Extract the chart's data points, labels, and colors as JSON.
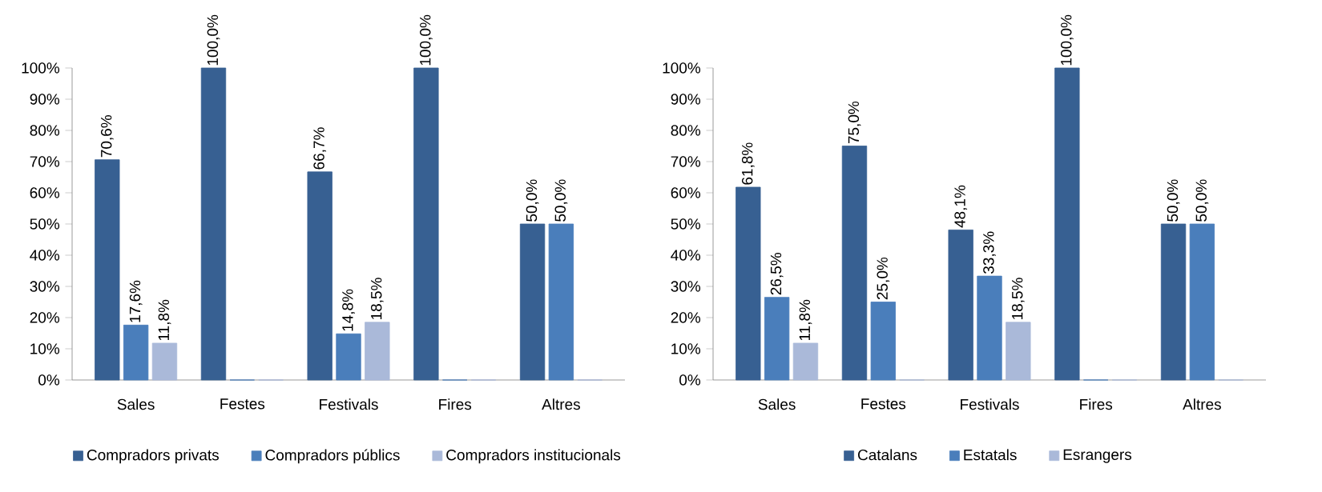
{
  "chart_data": [
    {
      "type": "bar",
      "categories": [
        "Sales",
        "Festes",
        "Festivals",
        "Fires",
        "Altres"
      ],
      "ylim": [
        0,
        100
      ],
      "yticks": [
        {
          "value": 0,
          "label": "0%"
        },
        {
          "value": 10,
          "label": "10%"
        },
        {
          "value": 20,
          "label": "20%"
        },
        {
          "value": 30,
          "label": "30%"
        },
        {
          "value": 40,
          "label": "40%"
        },
        {
          "value": 50,
          "label": "50%"
        },
        {
          "value": 60,
          "label": "60%"
        },
        {
          "value": 70,
          "label": "70%"
        },
        {
          "value": 80,
          "label": "80%"
        },
        {
          "value": 90,
          "label": "90%"
        },
        {
          "value": 100,
          "label": "100%"
        }
      ],
      "legend": "bottom",
      "series": [
        {
          "name": "Compradors privats",
          "color": "#376092",
          "values": [
            70.6,
            100,
            66.7,
            100,
            50
          ],
          "value_labels": [
            "70,6%",
            "100,0%",
            "66,7%",
            "100,0%",
            "50,0%"
          ]
        },
        {
          "name": "Compradors públics",
          "color": "#4a7ebb",
          "values": [
            17.6,
            0,
            14.8,
            0,
            50
          ],
          "value_labels": [
            "17,6%",
            null,
            "14,8%",
            null,
            "50,0%"
          ]
        },
        {
          "name": "Compradors institucionals",
          "color": "#aab9d9",
          "values": [
            11.8,
            0,
            18.5,
            0,
            0
          ],
          "value_labels": [
            "11,8%",
            null,
            "18,5%",
            null,
            null
          ]
        }
      ]
    },
    {
      "type": "bar",
      "categories": [
        "Sales",
        "Festes",
        "Festivals",
        "Fires",
        "Altres"
      ],
      "ylim": [
        0,
        100
      ],
      "yticks": [
        {
          "value": 0,
          "label": "0%"
        },
        {
          "value": 10,
          "label": "10%"
        },
        {
          "value": 20,
          "label": "20%"
        },
        {
          "value": 30,
          "label": "30%"
        },
        {
          "value": 40,
          "label": "40%"
        },
        {
          "value": 50,
          "label": "50%"
        },
        {
          "value": 60,
          "label": "60%"
        },
        {
          "value": 70,
          "label": "70%"
        },
        {
          "value": 80,
          "label": "80%"
        },
        {
          "value": 90,
          "label": "90%"
        },
        {
          "value": 100,
          "label": "100%"
        }
      ],
      "legend": "bottom",
      "series": [
        {
          "name": "Catalans",
          "color": "#376092",
          "values": [
            61.8,
            75,
            48.1,
            100,
            50
          ],
          "value_labels": [
            "61,8%",
            "75,0%",
            "48,1%",
            "100,0%",
            "50,0%"
          ]
        },
        {
          "name": "Estatals",
          "color": "#4a7ebb",
          "values": [
            26.5,
            25,
            33.3,
            0,
            50
          ],
          "value_labels": [
            "26,5%",
            "25,0%",
            "33,3%",
            null,
            "50,0%"
          ]
        },
        {
          "name": "Esrangers",
          "color": "#aab9d9",
          "values": [
            11.8,
            0,
            18.5,
            0,
            0
          ],
          "value_labels": [
            "11,8%",
            null,
            "18,5%",
            null,
            null
          ]
        }
      ]
    }
  ]
}
